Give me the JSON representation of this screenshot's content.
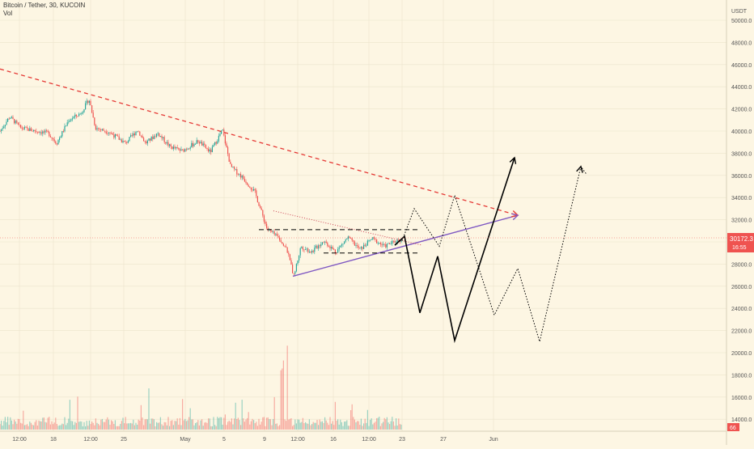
{
  "header": {
    "symbol": "Bitcoin / Tether, 30, KUCOIN",
    "volume_label": "Vol"
  },
  "axis": {
    "currency": "USDT",
    "price_ticks": [
      "50000.0",
      "48000.0",
      "46000.0",
      "44000.0",
      "42000.0",
      "40000.0",
      "38000.0",
      "36000.0",
      "34000.0",
      "32000.0",
      "30000.0",
      "28000.0",
      "26000.0",
      "24000.0",
      "22000.0",
      "20000.0",
      "18000.0",
      "16000.0",
      "14000.0"
    ],
    "time_ticks": [
      "12:00",
      "18",
      "12:00",
      "25",
      "May",
      "5",
      "9",
      "12:00",
      "16",
      "12:00",
      "23",
      "27",
      "Jun"
    ]
  },
  "badges": {
    "price": "30172.3",
    "countdown": "16:55",
    "volume": "66"
  },
  "colors": {
    "background": "#fdf6e3",
    "candle_up": "#26a69a",
    "candle_down": "#ef5350",
    "resistance": "#e53935",
    "support": "#7e57c2",
    "projection": "#000000",
    "price_badge": "#ef5350"
  },
  "chart_data": {
    "type": "candlestick",
    "title": "Bitcoin / Tether, 30, KUCOIN",
    "ylabel": "USDT",
    "ylim": [
      13000,
      51000
    ],
    "price_path": [
      [
        0,
        40000
      ],
      [
        12,
        41300
      ],
      [
        25,
        40300
      ],
      [
        45,
        40000
      ],
      [
        60,
        39800
      ],
      [
        70,
        38900
      ],
      [
        85,
        41000
      ],
      [
        100,
        41600
      ],
      [
        110,
        42900
      ],
      [
        118,
        40300
      ],
      [
        135,
        39900
      ],
      [
        155,
        38900
      ],
      [
        170,
        40100
      ],
      [
        180,
        38900
      ],
      [
        195,
        39800
      ],
      [
        210,
        38600
      ],
      [
        225,
        38200
      ],
      [
        245,
        39100
      ],
      [
        260,
        38100
      ],
      [
        275,
        40100
      ],
      [
        285,
        36800
      ],
      [
        300,
        35800
      ],
      [
        315,
        34500
      ],
      [
        330,
        31200
      ],
      [
        345,
        30300
      ],
      [
        355,
        29200
      ],
      [
        363,
        26900
      ],
      [
        372,
        29600
      ],
      [
        385,
        29100
      ],
      [
        400,
        30100
      ],
      [
        415,
        29100
      ],
      [
        430,
        30400
      ],
      [
        445,
        29300
      ],
      [
        460,
        30300
      ],
      [
        475,
        29600
      ],
      [
        490,
        30100
      ],
      [
        497,
        30200
      ]
    ],
    "annotations": {
      "resistance_line": [
        [
          0,
          45600
        ],
        [
          640,
          32400
        ]
      ],
      "support_line": [
        [
          362,
          26900
        ],
        [
          640,
          32400
        ]
      ],
      "triangle_upper": [
        [
          338,
          32800
        ],
        [
          522,
          29700
        ]
      ],
      "range_top": [
        [
          320,
          31100
        ],
        [
          518,
          31100
        ]
      ],
      "range_bottom": [
        [
          400,
          29000
        ],
        [
          520,
          29000
        ]
      ],
      "bullish_projection": [
        [
          497,
          30100
        ],
        [
          512,
          33000
        ],
        [
          543,
          29600
        ],
        [
          562,
          34200
        ],
        [
          611,
          23400
        ],
        [
          640,
          27600
        ],
        [
          667,
          21000
        ],
        [
          718,
          36800
        ],
        [
          725,
          36100
        ]
      ],
      "bearish_projection": [
        [
          488,
          29700
        ],
        [
          500,
          30500
        ],
        [
          519,
          23600
        ],
        [
          541,
          28700
        ],
        [
          562,
          21100
        ],
        [
          636,
          37600
        ]
      ]
    }
  }
}
